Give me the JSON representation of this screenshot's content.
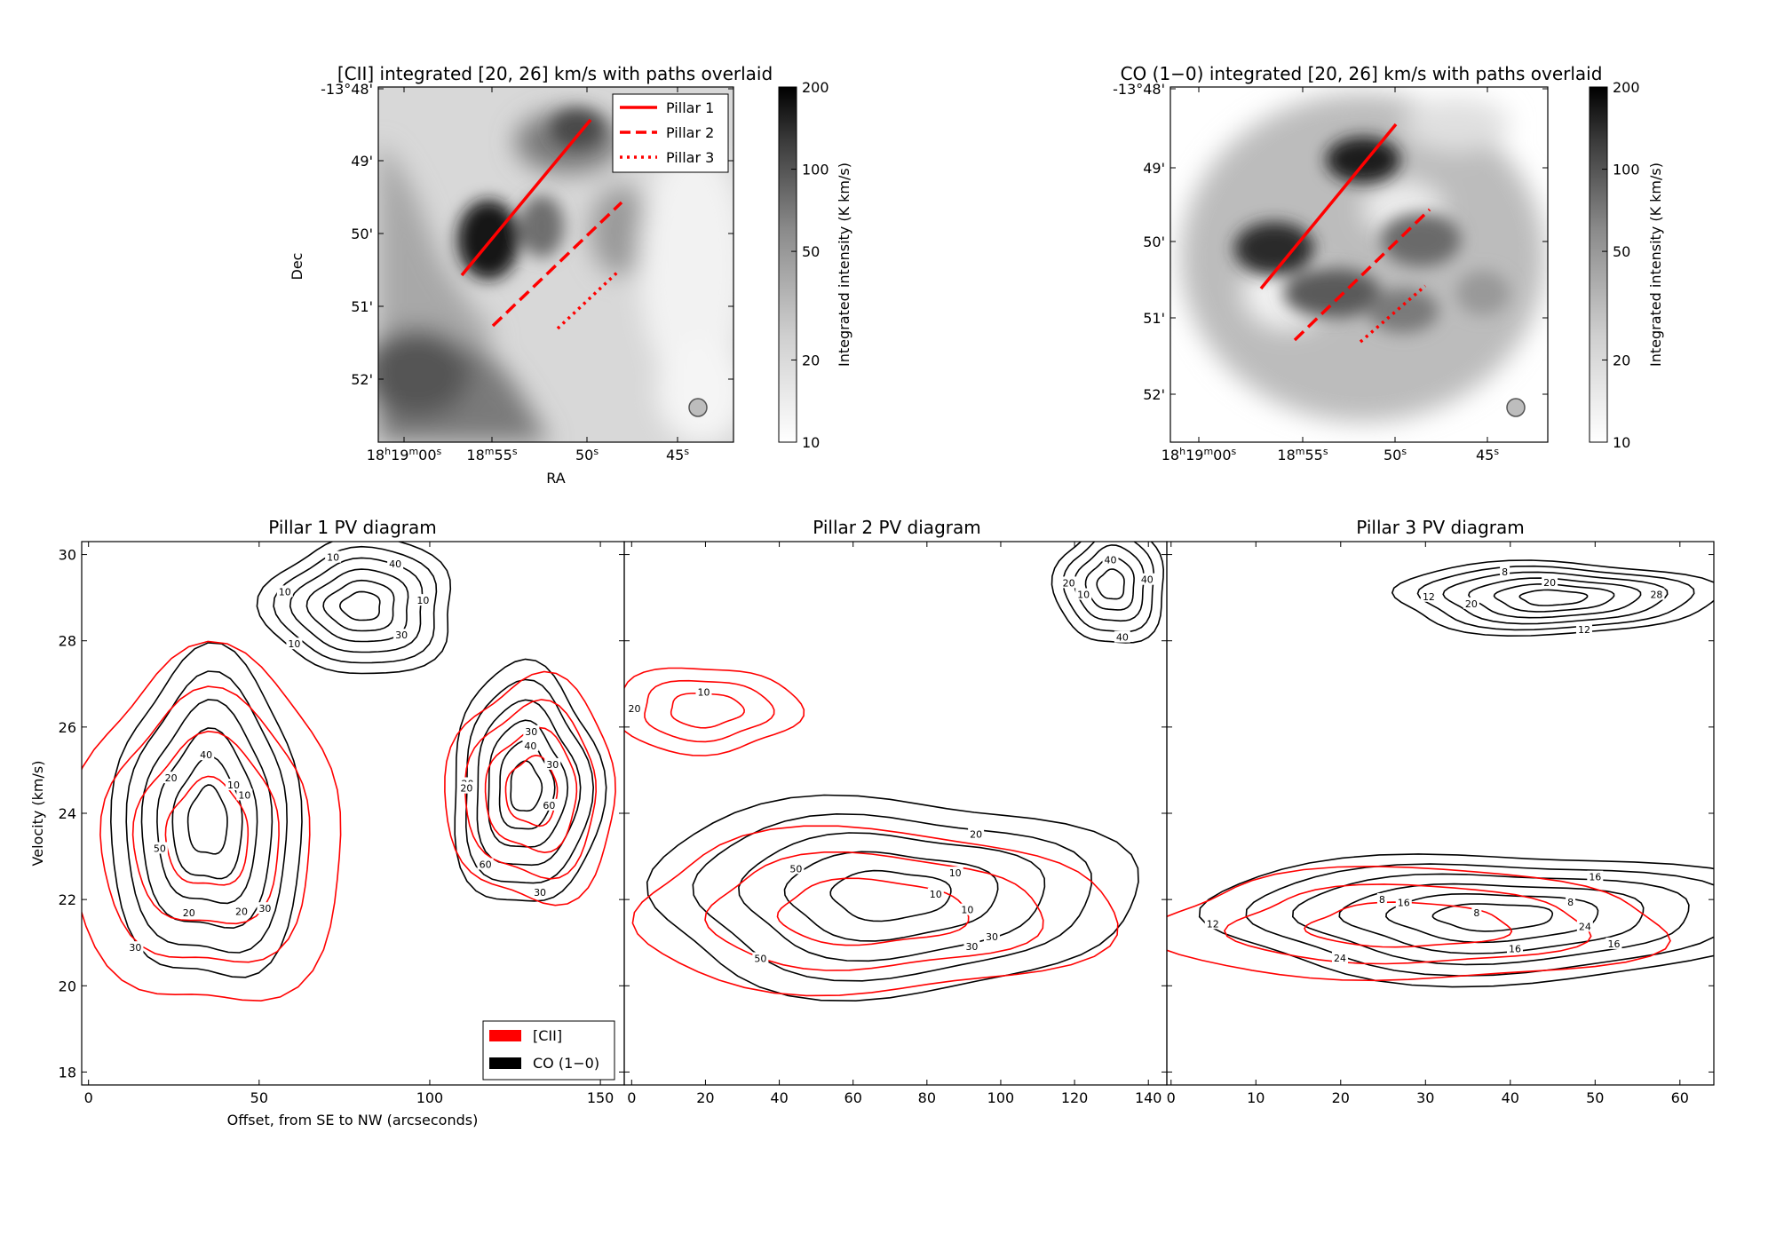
{
  "chart_data": [
    {
      "type": "heatmap",
      "title": "[CII] integrated [20, 26] km/s with paths overlaid",
      "xlabel": "RA",
      "ylabel": "Dec",
      "x_ticks": [
        "18h19m00s",
        "18m55s",
        "50s",
        "45s"
      ],
      "y_ticks": [
        "-13°48'",
        "49'",
        "50'",
        "51'",
        "52'"
      ],
      "colorbar": {
        "label": "Integrated intensity (K km/s)",
        "scale": "log",
        "range": [
          10,
          200
        ],
        "ticks": [
          "10",
          "20",
          "50",
          "100",
          "200"
        ],
        "cmap": "gray_r"
      },
      "legend": [
        "Pillar 1",
        "Pillar 2",
        "Pillar 3"
      ],
      "paths": [
        {
          "name": "Pillar 1",
          "style": "solid",
          "color": "#ff0000"
        },
        {
          "name": "Pillar 2",
          "style": "dashed",
          "color": "#ff0000"
        },
        {
          "name": "Pillar 3",
          "style": "dotted",
          "color": "#ff0000"
        }
      ]
    },
    {
      "type": "heatmap",
      "title": "CO (1−0) integrated [20, 26] km/s with paths overlaid",
      "x_ticks": [
        "18h19m00s",
        "18m55s",
        "50s",
        "45s"
      ],
      "y_ticks": [
        "-13°48'",
        "49'",
        "50'",
        "51'",
        "52'"
      ],
      "colorbar": {
        "label": "Integrated intensity (K km/s)",
        "scale": "log",
        "range": [
          10,
          200
        ],
        "ticks": [
          "10",
          "20",
          "50",
          "100",
          "200"
        ],
        "cmap": "gray_r"
      }
    },
    {
      "type": "contour",
      "title": "Pillar 1 PV diagram",
      "xlabel": "Offset, from SE to NW (arcseconds)",
      "ylabel": "Velocity (km/s)",
      "xlim": [
        -2,
        157
      ],
      "ylim": [
        17.7,
        30.3
      ],
      "x_ticks": [
        0,
        50,
        100,
        150
      ],
      "y_ticks": [
        18,
        20,
        22,
        24,
        26,
        28,
        30
      ],
      "legend": [
        "[CII]",
        "CO (1−0)"
      ],
      "cii_levels": [
        10,
        20,
        30,
        40
      ],
      "co_levels": [
        10,
        20,
        30,
        40,
        50,
        60
      ],
      "cii_components": [
        {
          "x": 35,
          "y": 23.5,
          "rx": 40,
          "ry": 4.1
        },
        {
          "x": 130,
          "y": 24.5,
          "rx": 25,
          "ry": 2.6
        }
      ],
      "co_components": [
        {
          "x": 35,
          "y": 23.8,
          "rx": 28,
          "ry": 3.8
        },
        {
          "x": 128,
          "y": 24.6,
          "rx": 22,
          "ry": 2.8
        },
        {
          "x": 80,
          "y": 28.8,
          "rx": 28,
          "ry": 1.6
        }
      ],
      "labels_cii": [
        "10",
        "20",
        "30",
        "40",
        "30"
      ],
      "labels_co": [
        "10",
        "20",
        "30",
        "40",
        "60",
        "10",
        "20",
        "30",
        "40",
        "50",
        "60",
        "10",
        "20",
        "30",
        "10",
        "20",
        "30",
        "10"
      ]
    },
    {
      "type": "contour",
      "title": "Pillar 2 PV diagram",
      "xlim": [
        -2,
        145
      ],
      "ylim": [
        17.7,
        30.3
      ],
      "x_ticks": [
        0,
        20,
        40,
        60,
        80,
        100,
        120,
        140
      ],
      "cii_levels": [
        10,
        20,
        30
      ],
      "co_levels": [
        10,
        20,
        30,
        40,
        50
      ],
      "cii_components": [
        {
          "x": 65,
          "y": 21.7,
          "rx": 65,
          "ry": 1.9
        },
        {
          "x": 20,
          "y": 26.4,
          "rx": 25,
          "ry": 1.0
        }
      ],
      "co_components": [
        {
          "x": 70,
          "y": 22.1,
          "rx": 66,
          "ry": 2.3
        },
        {
          "x": 130,
          "y": 29.3,
          "rx": 15,
          "ry": 1.4
        }
      ],
      "labels_cii": [
        "10",
        "20",
        "30",
        "10"
      ],
      "labels_co": [
        "10",
        "20",
        "30",
        "40",
        "50",
        "40",
        "50",
        "40",
        "20",
        "10",
        "10"
      ]
    },
    {
      "type": "contour",
      "title": "Pillar 3 PV diagram",
      "xlim": [
        -0.5,
        64
      ],
      "ylim": [
        17.7,
        30.3
      ],
      "x_ticks": [
        0,
        10,
        20,
        30,
        40,
        50,
        60
      ],
      "cii_levels": [
        8,
        12,
        16
      ],
      "co_levels": [
        8,
        12,
        16,
        20,
        24,
        28
      ],
      "cii_components": [
        {
          "x": 28,
          "y": 21.4,
          "rx": 30,
          "ry": 1.3
        }
      ],
      "co_components": [
        {
          "x": 38,
          "y": 21.6,
          "rx": 34,
          "ry": 1.5
        },
        {
          "x": 45,
          "y": 29.0,
          "rx": 19,
          "ry": 0.85
        }
      ],
      "labels_cii": [
        "8",
        "12",
        "16",
        "16"
      ],
      "labels_co": [
        "8",
        "12",
        "16",
        "20",
        "24",
        "28",
        "8",
        "12",
        "16",
        "20",
        "24",
        "8"
      ]
    }
  ]
}
